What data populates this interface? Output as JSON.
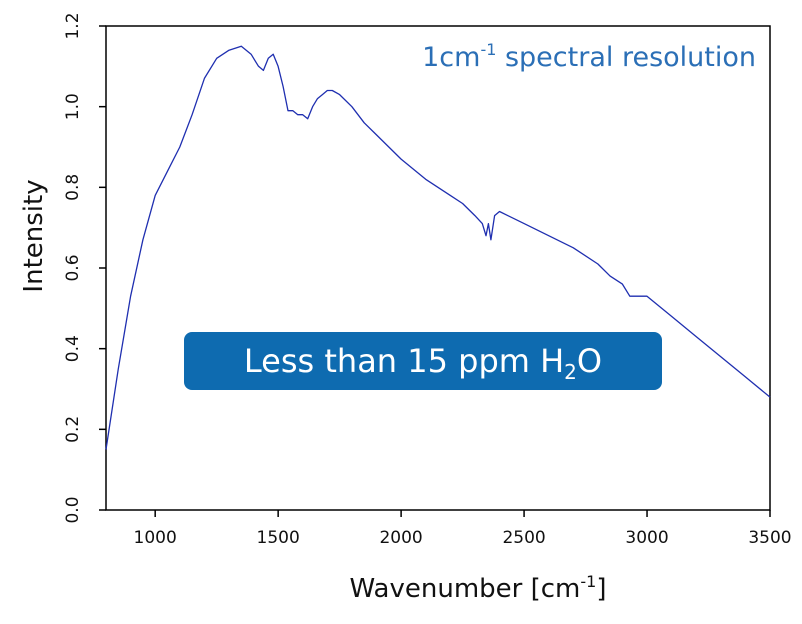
{
  "chart_data": {
    "type": "line",
    "title": "",
    "xlabel": "Wavenumber [cm-1]",
    "xlabel_main": "Wavenumber [cm",
    "xlabel_sup": "-1",
    "xlabel_end": "]",
    "ylabel": "Intensity",
    "xlim": [
      800,
      3500
    ],
    "ylim": [
      0.0,
      1.2
    ],
    "xticks": [
      1000,
      1500,
      2000,
      2500,
      3000,
      3500
    ],
    "xtick_labels": [
      "1000",
      "1500",
      "2000",
      "2500",
      "3000",
      "3500"
    ],
    "yticks": [
      0.0,
      0.2,
      0.4,
      0.6,
      0.8,
      1.0,
      1.2
    ],
    "ytick_labels": [
      "0.0",
      "0.2",
      "0.4",
      "0.6",
      "0.8",
      "1.0",
      "1.2"
    ],
    "grid": false,
    "series": [
      {
        "name": "Intensity",
        "color": "#1f2fb0",
        "x": [
          800,
          850,
          900,
          950,
          1000,
          1050,
          1100,
          1150,
          1200,
          1250,
          1300,
          1350,
          1390,
          1420,
          1440,
          1460,
          1480,
          1500,
          1520,
          1540,
          1560,
          1580,
          1600,
          1620,
          1640,
          1660,
          1680,
          1700,
          1720,
          1750,
          1800,
          1850,
          1900,
          2000,
          2100,
          2200,
          2250,
          2300,
          2330,
          2345,
          2355,
          2365,
          2380,
          2400,
          2500,
          2600,
          2700,
          2800,
          2850,
          2900,
          2930,
          2960,
          3000,
          3100,
          3200,
          3300,
          3400,
          3500
        ],
        "y": [
          0.15,
          0.35,
          0.53,
          0.67,
          0.78,
          0.84,
          0.9,
          0.98,
          1.07,
          1.12,
          1.14,
          1.15,
          1.13,
          1.1,
          1.09,
          1.12,
          1.13,
          1.1,
          1.05,
          0.99,
          0.99,
          0.98,
          0.98,
          0.97,
          1.0,
          1.02,
          1.03,
          1.04,
          1.04,
          1.03,
          1.0,
          0.96,
          0.93,
          0.87,
          0.82,
          0.78,
          0.76,
          0.73,
          0.71,
          0.68,
          0.71,
          0.67,
          0.73,
          0.74,
          0.71,
          0.68,
          0.65,
          0.61,
          0.58,
          0.56,
          0.53,
          0.53,
          0.53,
          0.48,
          0.43,
          0.38,
          0.33,
          0.28
        ]
      }
    ],
    "annotations": {
      "top_right_prefix": "1cm",
      "top_right_sup": "-1",
      "top_right_suffix": " spectral resolution",
      "box_prefix": "Less than 15 ppm H",
      "box_sub": "2",
      "box_suffix": "O",
      "box_color": "#0e6bb0"
    }
  }
}
